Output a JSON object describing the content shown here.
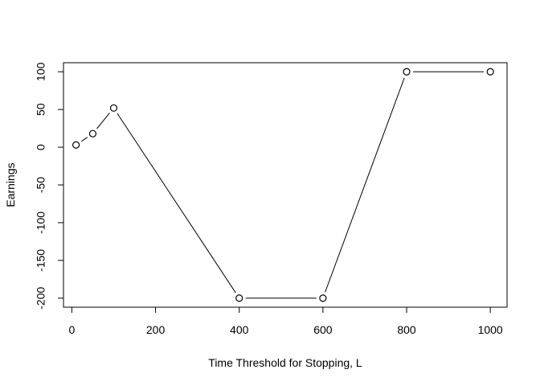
{
  "chart_data": {
    "type": "line",
    "title": "",
    "xlabel": "Time Threshold for Stopping, L",
    "ylabel": "Earnings",
    "x": [
      10,
      50,
      100,
      400,
      600,
      800,
      1000
    ],
    "series": [
      {
        "values": [
          3,
          18,
          52,
          -200,
          -200,
          100,
          100
        ]
      }
    ],
    "xlim": [
      -20,
      1040
    ],
    "ylim": [
      -212,
      112
    ],
    "xticks": [
      0,
      200,
      400,
      600,
      800,
      1000
    ],
    "xtick_labels": [
      "0",
      "200",
      "400",
      "600",
      "800",
      "1000"
    ],
    "yticks": [
      -200,
      -150,
      -100,
      -50,
      0,
      50,
      100
    ],
    "ytick_labels": [
      "-200",
      "-150",
      "-100",
      "-50",
      "0",
      "50",
      "100"
    ],
    "marker": "open-circle",
    "line_style": "gapped",
    "line_color": "#000000",
    "grid": false,
    "legend": "none"
  }
}
